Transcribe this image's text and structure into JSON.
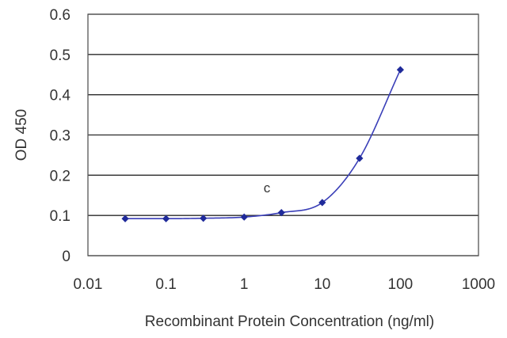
{
  "chart_data": {
    "type": "scatter",
    "xlabel": "Recombinant Protein Concentration (ng/ml)",
    "ylabel": "OD 450",
    "x_scale": "log",
    "xlim": [
      0.01,
      1000
    ],
    "ylim": [
      0,
      0.6
    ],
    "x_ticks": [
      0.01,
      0.1,
      1,
      10,
      100,
      1000
    ],
    "x_tick_labels": [
      "0.01",
      "0.1",
      "1",
      "10",
      "100",
      "1000"
    ],
    "y_ticks": [
      0,
      0.1,
      0.2,
      0.3,
      0.4,
      0.5,
      0.6
    ],
    "y_tick_labels": [
      "0",
      "0.1",
      "0.2",
      "0.3",
      "0.4",
      "0.5",
      "0.6"
    ],
    "grid": "horizontal",
    "annotation": "c",
    "series": [
      {
        "x": [
          0.03,
          0.1,
          0.3,
          1,
          3,
          10,
          30,
          100
        ],
        "y": [
          0.092,
          0.092,
          0.093,
          0.096,
          0.107,
          0.132,
          0.242,
          0.462
        ],
        "marker": "diamond",
        "fitted_curve": true
      }
    ],
    "colors": {
      "marker": "#1f2a9a",
      "curve": "#3a3fb8",
      "grid": "#2a2a2a"
    }
  }
}
